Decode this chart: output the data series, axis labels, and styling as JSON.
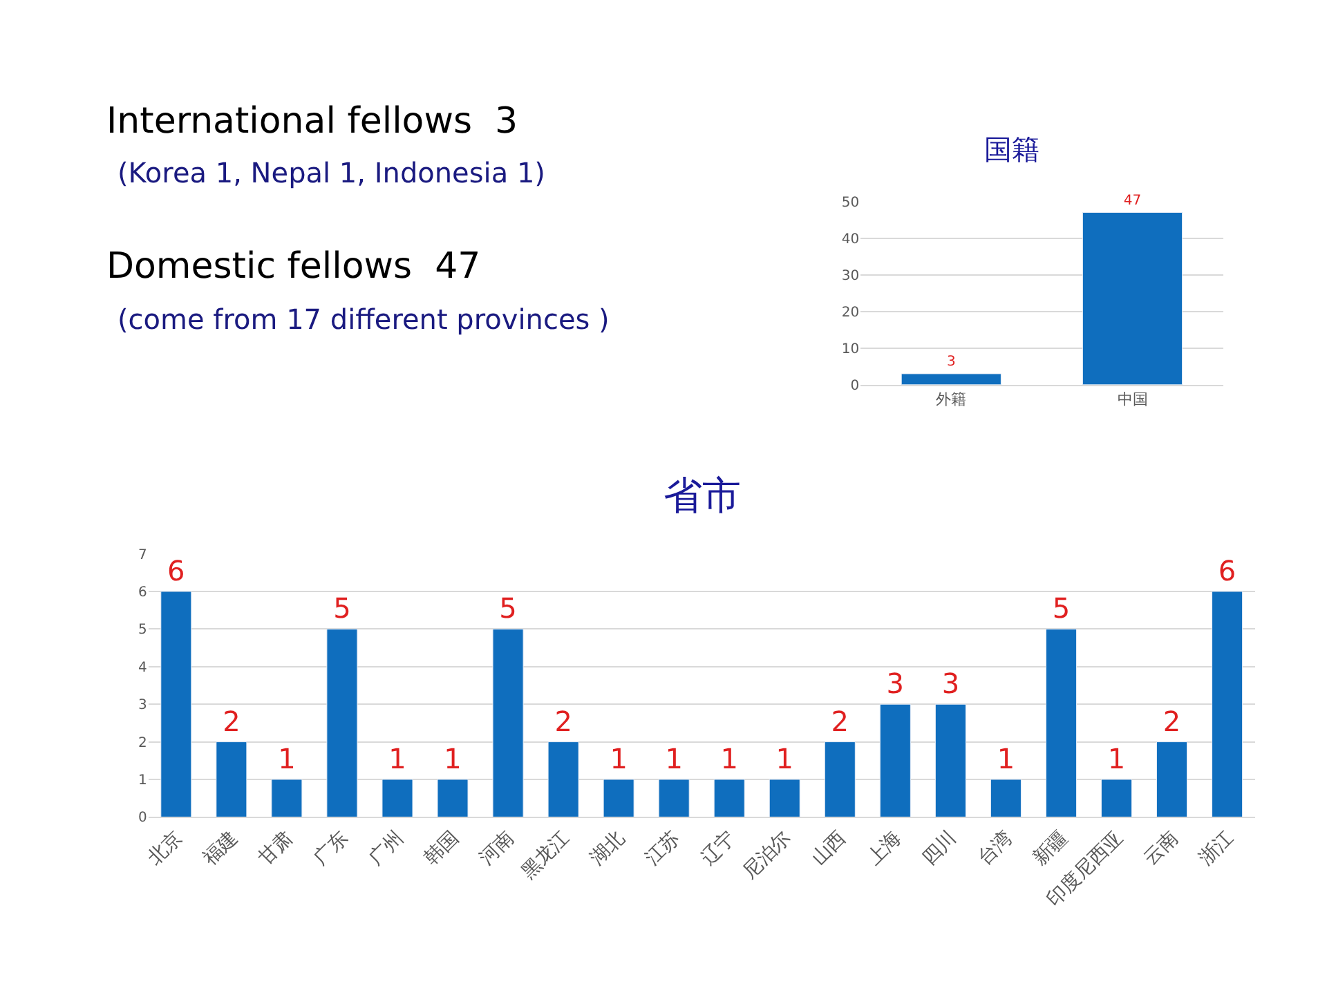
{
  "chart_data": [
    {
      "type": "other",
      "annotations": [
        "International fellows  3",
        "(Korea 1, Nepal 1, Indonesia 1)",
        "Domestic fellows  47",
        "(come from 17 different provinces )"
      ]
    },
    {
      "type": "bar",
      "title": "国籍",
      "categories": [
        "外籍",
        "中国"
      ],
      "values": [
        3,
        47
      ],
      "color": "#0f6ebe",
      "ylim": [
        0,
        50
      ],
      "yticks": [
        0,
        10,
        20,
        30,
        40,
        50
      ],
      "grid": "y",
      "data_labels": true
    },
    {
      "type": "bar",
      "title": "省市",
      "categories": [
        "北京",
        "福建",
        "甘肃",
        "广东",
        "广州",
        "韩国",
        "河南",
        "黑龙江",
        "湖北",
        "江苏",
        "辽宁",
        "尼泊尔",
        "山西",
        "上海",
        "四川",
        "台湾",
        "新疆",
        "印度尼西亚",
        "云南",
        "浙江"
      ],
      "values": [
        6,
        2,
        1,
        5,
        1,
        1,
        5,
        2,
        1,
        1,
        1,
        1,
        2,
        3,
        3,
        1,
        5,
        1,
        2,
        6
      ],
      "color": "#0f6ebe",
      "ylim": [
        0,
        7
      ],
      "yticks": [
        0,
        1,
        2,
        3,
        4,
        5,
        6,
        7
      ],
      "grid": "y",
      "data_labels": true
    }
  ]
}
